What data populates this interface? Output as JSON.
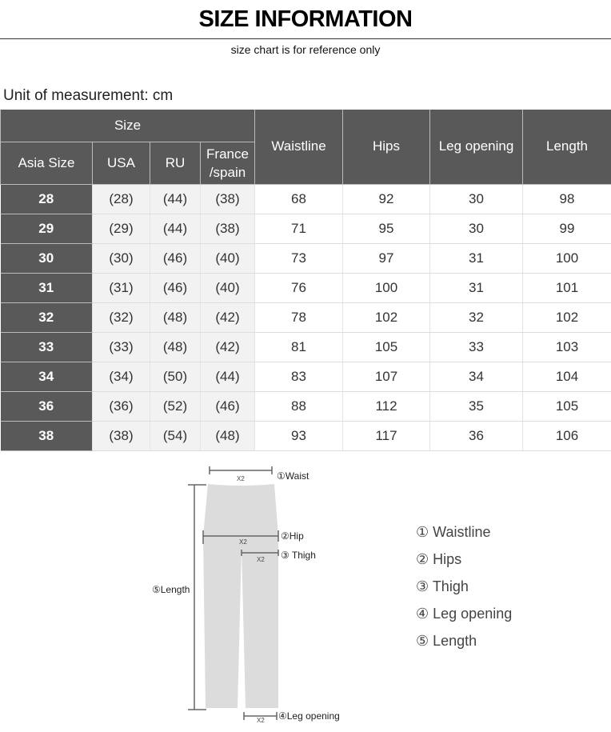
{
  "title": "SIZE INFORMATION",
  "subtitle": "size chart is for reference only",
  "unit": "Unit of measurement: cm",
  "table": {
    "group_header": "Size",
    "size_headers": [
      "Asia Size",
      "USA",
      "RU",
      "France\n/spain"
    ],
    "measure_headers": [
      "Waistline",
      "Hips",
      "Leg opening",
      "Length"
    ],
    "rows": [
      [
        "28",
        "(28)",
        "(44)",
        "(38)",
        "68",
        "92",
        "30",
        "98"
      ],
      [
        "29",
        "(29)",
        "(44)",
        "(38)",
        "71",
        "95",
        "30",
        "99"
      ],
      [
        "30",
        "(30)",
        "(46)",
        "(40)",
        "73",
        "97",
        "31",
        "100"
      ],
      [
        "31",
        "(31)",
        "(46)",
        "(40)",
        "76",
        "100",
        "31",
        "101"
      ],
      [
        "32",
        "(32)",
        "(48)",
        "(42)",
        "78",
        "102",
        "32",
        "102"
      ],
      [
        "33",
        "(33)",
        "(48)",
        "(42)",
        "81",
        "105",
        "33",
        "103"
      ],
      [
        "34",
        "(34)",
        "(50)",
        "(44)",
        "83",
        "107",
        "34",
        "104"
      ],
      [
        "36",
        "(36)",
        "(52)",
        "(46)",
        "88",
        "112",
        "35",
        "105"
      ],
      [
        "38",
        "(38)",
        "(54)",
        "(48)",
        "93",
        "117",
        "36",
        "106"
      ]
    ]
  },
  "diagram": {
    "x2": "X2",
    "waist": "①Waist",
    "hip": "②Hip",
    "thigh": "③ Thigh",
    "length": "⑤Length",
    "leg": "④Leg opening"
  },
  "legend": [
    "① Waistline",
    "② Hips",
    "③ Thigh",
    "④ Leg opening",
    "⑤ Length"
  ],
  "colors": {
    "header": "#595959",
    "size_cell": "#f2f2f2"
  }
}
